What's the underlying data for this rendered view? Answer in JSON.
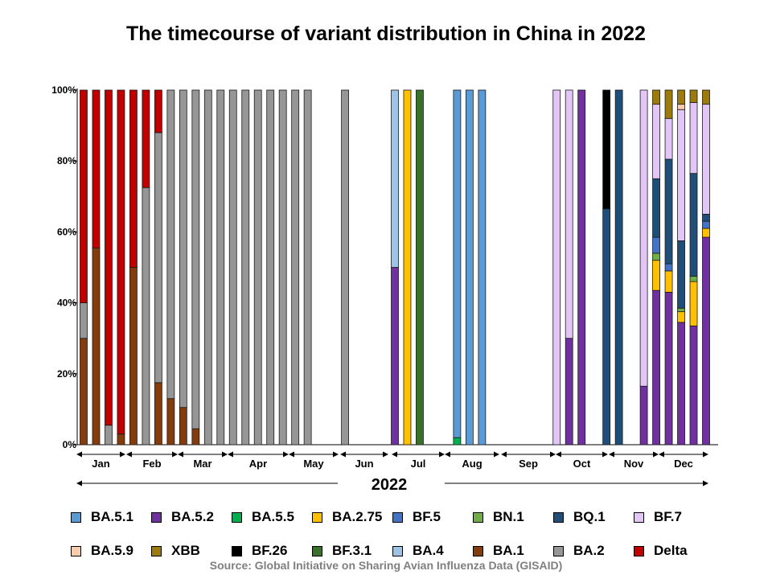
{
  "chart_data": {
    "type": "bar",
    "stacked": true,
    "title": "The timecourse of variant distribution in China in 2022",
    "xlabel": "2022",
    "source": "Source: Global Initiative on Sharing Avian Influenza Data (GISAID)",
    "yticks": [
      "0%",
      "20%",
      "40%",
      "60%",
      "80%",
      "100%"
    ],
    "ylim": [
      0,
      100
    ],
    "months": [
      "Jan",
      "Feb",
      "Mar",
      "Apr",
      "May",
      "Jun",
      "Jul",
      "Aug",
      "Sep",
      "Oct",
      "Nov",
      "Dec"
    ],
    "stack_order": [
      "BA.5.2",
      "BA.1",
      "BA.2.75",
      "BA.5.5",
      "BN.1",
      "BF.5",
      "BQ.1",
      "BF.7",
      "BA.4",
      "BA.5.1",
      "BF.3.1",
      "BF.26",
      "BA.5.9",
      "XBB",
      "BA.2",
      "Delta"
    ],
    "legend": [
      {
        "name": "BA.5.1",
        "color": "#5B9BD5"
      },
      {
        "name": "BA.5.2",
        "color": "#7030A0"
      },
      {
        "name": "BA.5.5",
        "color": "#00B050"
      },
      {
        "name": "BA.2.75",
        "color": "#FFC000"
      },
      {
        "name": "BF.5",
        "color": "#4472C4"
      },
      {
        "name": "BN.1",
        "color": "#70AD47"
      },
      {
        "name": "BQ.1",
        "color": "#1F4E79"
      },
      {
        "name": "BF.7",
        "color": "#E2C6F7"
      },
      {
        "name": "BA.5.9",
        "color": "#F8CBAD"
      },
      {
        "name": "XBB",
        "color": "#9C7A0C"
      },
      {
        "name": "BF.26",
        "color": "#000000"
      },
      {
        "name": "BF.3.1",
        "color": "#38712A"
      },
      {
        "name": "BA.4",
        "color": "#9DC3E6"
      },
      {
        "name": "BA.1",
        "color": "#843C0C"
      },
      {
        "name": "BA.2",
        "color": "#969696"
      },
      {
        "name": "Delta",
        "color": "#C00000"
      }
    ],
    "bars": [
      {
        "week": 1,
        "values": {
          "BA.1": 30,
          "BA.2": 10,
          "Delta": 60
        }
      },
      {
        "week": 2,
        "values": {
          "BA.1": 55.5,
          "Delta": 44.5
        }
      },
      {
        "week": 3,
        "values": {
          "BA.2": 5.5,
          "Delta": 94.5
        }
      },
      {
        "week": 4,
        "values": {
          "BA.1": 3,
          "Delta": 97
        }
      },
      {
        "week": 5,
        "values": {
          "BA.1": 50,
          "Delta": 50
        }
      },
      {
        "week": 6,
        "values": {
          "BA.2": 72.5,
          "Delta": 27.5
        }
      },
      {
        "week": 7,
        "values": {
          "BA.1": 17.5,
          "BA.2": 70.5,
          "Delta": 12
        }
      },
      {
        "week": 8,
        "values": {
          "BA.1": 13,
          "BA.2": 87
        }
      },
      {
        "week": 9,
        "values": {
          "BA.1": 10.5,
          "BA.2": 89.5
        }
      },
      {
        "week": 10,
        "values": {
          "BA.1": 4.5,
          "BA.2": 95.5
        }
      },
      {
        "week": 11,
        "values": {
          "BA.2": 100
        }
      },
      {
        "week": 12,
        "values": {
          "BA.2": 100
        }
      },
      {
        "week": 13,
        "values": {
          "BA.2": 100
        }
      },
      {
        "week": 14,
        "values": {
          "BA.2": 100
        }
      },
      {
        "week": 15,
        "values": {
          "BA.2": 100
        }
      },
      {
        "week": 16,
        "values": {
          "BA.2": 100
        }
      },
      {
        "week": 17,
        "values": {
          "BA.2": 100
        }
      },
      {
        "week": 18,
        "values": {
          "BA.2": 100
        }
      },
      {
        "week": 19,
        "values": {
          "BA.2": 100
        }
      },
      {
        "week": 22,
        "values": {
          "BA.2": 100
        }
      },
      {
        "week": 26,
        "values": {
          "BA.5.2": 50,
          "BA.4": 50
        }
      },
      {
        "week": 27,
        "values": {
          "BA.2.75": 100
        }
      },
      {
        "week": 28,
        "values": {
          "BF.3.1": 100
        }
      },
      {
        "week": 31,
        "values": {
          "BA.5.1": 98,
          "BA.5.5": 2
        }
      },
      {
        "week": 32,
        "values": {
          "BA.5.1": 100
        }
      },
      {
        "week": 33,
        "values": {
          "BA.5.1": 100
        }
      },
      {
        "week": 39,
        "values": {
          "BF.7": 100
        }
      },
      {
        "week": 40,
        "values": {
          "BA.5.2": 30,
          "BF.7": 70
        }
      },
      {
        "week": 41,
        "values": {
          "BA.5.2": 100
        }
      },
      {
        "week": 43,
        "values": {
          "BQ.1": 66.5,
          "BF.26": 33.5
        }
      },
      {
        "week": 44,
        "values": {
          "BQ.1": 100
        }
      },
      {
        "week": 46,
        "values": {
          "BA.5.2": 16.5,
          "BF.7": 83.5
        }
      },
      {
        "week": 47,
        "values": {
          "BA.5.2": 43.5,
          "BA.2.75": 8.5,
          "BF.5": 4.5,
          "BN.1": 2,
          "BQ.1": 16.5,
          "BF.7": 21,
          "XBB": 4
        }
      },
      {
        "week": 48,
        "values": {
          "BA.5.2": 43,
          "BA.2.75": 6,
          "BF.5": 2,
          "BQ.1": 29.5,
          "BF.7": 11.5,
          "XBB": 8
        }
      },
      {
        "week": 49,
        "values": {
          "BA.5.2": 34.5,
          "BA.2.75": 3,
          "BN.1": 1,
          "BQ.1": 19,
          "BF.7": 37,
          "BA.5.9": 1.5,
          "XBB": 4
        }
      },
      {
        "week": 50,
        "values": {
          "BA.5.2": 33.5,
          "BA.2.75": 12.5,
          "BN.1": 1.5,
          "BQ.1": 29,
          "BF.7": 20,
          "XBB": 3.5
        }
      },
      {
        "week": 51,
        "values": {
          "BA.5.2": 58.5,
          "BA.2.75": 2.5,
          "BF.5": 2,
          "BQ.1": 2,
          "BF.7": 31,
          "XBB": 4
        }
      }
    ]
  }
}
